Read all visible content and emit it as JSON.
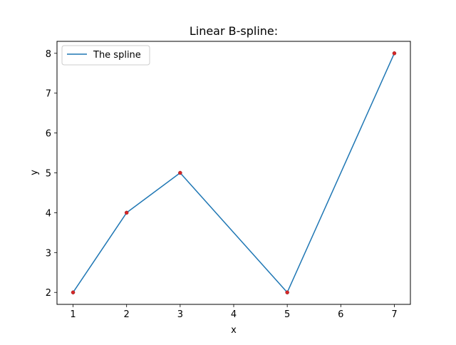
{
  "chart_data": {
    "type": "line",
    "title": "Linear B-spline:",
    "xlabel": "x",
    "ylabel": "y",
    "xlim": [
      0.7,
      7.3
    ],
    "ylim": [
      1.7,
      8.3
    ],
    "xticks": [
      1,
      2,
      3,
      4,
      5,
      6,
      7
    ],
    "yticks": [
      2,
      3,
      4,
      5,
      6,
      7,
      8
    ],
    "grid": false,
    "legend_position": "top-left",
    "series": [
      {
        "name": "The spline",
        "x": [
          1,
          2,
          3,
          5,
          7
        ],
        "y": [
          2,
          4,
          5,
          2,
          8
        ],
        "color": "#1f77b4"
      }
    ],
    "points": {
      "x": [
        1,
        2,
        3,
        5,
        7
      ],
      "y": [
        2,
        4,
        5,
        2,
        8
      ],
      "color": "#d62728"
    }
  }
}
